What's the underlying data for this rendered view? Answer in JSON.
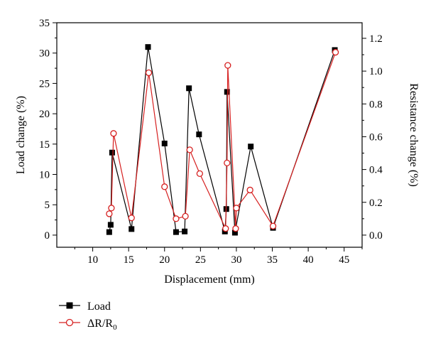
{
  "chart_data": {
    "type": "line",
    "xlabel": "Displacement (mm)",
    "ylabel_left": "Load change (%)",
    "ylabel_right": "Resistance change (%)",
    "xlim": [
      5,
      47.5
    ],
    "ylim_left": [
      -2,
      35
    ],
    "ylim_right": [
      -0.074,
      1.295
    ],
    "x_ticks": [
      10,
      15,
      20,
      25,
      30,
      35,
      40,
      45
    ],
    "x_tick_labels": [
      "10",
      "15",
      "20",
      "25",
      "30",
      "35",
      "40",
      "45"
    ],
    "y_left_ticks": [
      0,
      5,
      10,
      15,
      20,
      25,
      30,
      35
    ],
    "y_left_tick_labels": [
      "0",
      "5",
      "10",
      "15",
      "20",
      "25",
      "30",
      "35"
    ],
    "y_right_ticks": [
      0.0,
      0.2,
      0.4,
      0.6,
      0.8,
      1.0,
      1.2
    ],
    "y_right_tick_labels": [
      "0.0",
      "0.2",
      "0.4",
      "0.6",
      "0.8",
      "1.0",
      "1.2"
    ],
    "grid": false,
    "legend_position": "bottom-left (below plot)",
    "series": [
      {
        "name": "Load",
        "axis": "left",
        "color": "#000000",
        "marker": "filled-square",
        "x": [
          12.3,
          12.5,
          12.7,
          15.4,
          17.7,
          20.0,
          21.6,
          22.8,
          23.4,
          24.8,
          28.4,
          28.6,
          28.7,
          29.8,
          32.0,
          35.1,
          43.7
        ],
        "y": [
          0.5,
          1.7,
          13.6,
          1.0,
          31.0,
          15.1,
          0.5,
          0.6,
          24.2,
          16.6,
          0.6,
          4.3,
          23.6,
          0.4,
          14.6,
          1.2,
          30.5
        ]
      },
      {
        "name": "ΔR/R0",
        "axis": "right",
        "color": "#d62020",
        "marker": "open-circle",
        "x": [
          12.3,
          12.6,
          12.9,
          15.4,
          17.8,
          20.0,
          21.6,
          22.9,
          23.5,
          24.9,
          28.5,
          28.7,
          28.8,
          29.9,
          30.0,
          31.9,
          35.1,
          43.8
        ],
        "y": [
          0.13,
          0.165,
          0.62,
          0.105,
          0.99,
          0.295,
          0.1,
          0.115,
          0.52,
          0.375,
          0.04,
          0.44,
          1.035,
          0.04,
          0.165,
          0.275,
          0.055,
          1.115
        ]
      }
    ]
  },
  "legend": {
    "load_label": "Load",
    "resistance_label_base": "ΔR/R",
    "resistance_label_sub": "0"
  }
}
